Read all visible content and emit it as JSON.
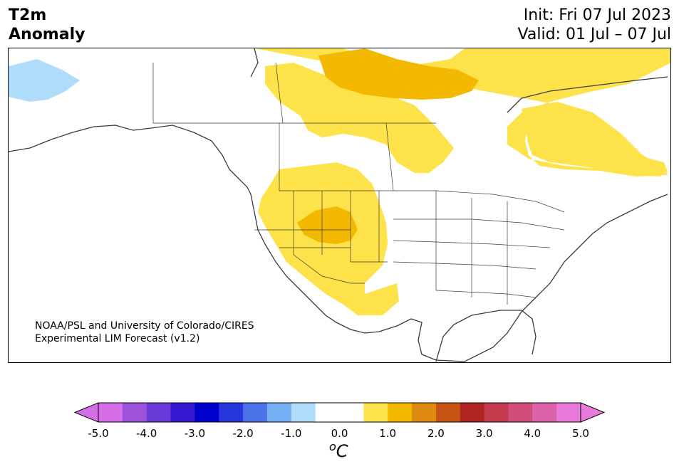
{
  "header": {
    "title_line1": "T2m",
    "title_line2": "Anomaly",
    "init_text": "Init: Fri 07 Jul 2023",
    "valid_text": "Valid: 01 Jul – 07 Jul"
  },
  "credit": {
    "line1": "NOAA/PSL and University of Colorado/CIRES",
    "line2": "Experimental LIM Forecast (v1.2)"
  },
  "colorbar": {
    "unit_base": "C",
    "unit_super": "o",
    "ticks": [
      "-5.0",
      "-4.0",
      "-3.0",
      "-2.0",
      "-1.0",
      "0.0",
      "1.0",
      "2.0",
      "3.0",
      "4.0",
      "5.0"
    ],
    "colors": [
      "#d66ee8",
      "#9e52dc",
      "#6a3ad9",
      "#3519d1",
      "#0000cc",
      "#2537dc",
      "#4b72e8",
      "#76b0f4",
      "#b0dcfb",
      "#ffffff",
      "#ffffff",
      "#fde24a",
      "#f3b800",
      "#de8a10",
      "#c85414",
      "#b12424",
      "#c23a4c",
      "#d14e7a",
      "#dc62aa",
      "#e87adc"
    ],
    "under_color": "#d66ee8",
    "over_color": "#e87adc"
  },
  "map": {
    "warm1_color": "#fde24a",
    "warm2_color": "#f3b800",
    "cool1_color": "#b0dcfb",
    "coast_color": "#3a3a3a"
  }
}
